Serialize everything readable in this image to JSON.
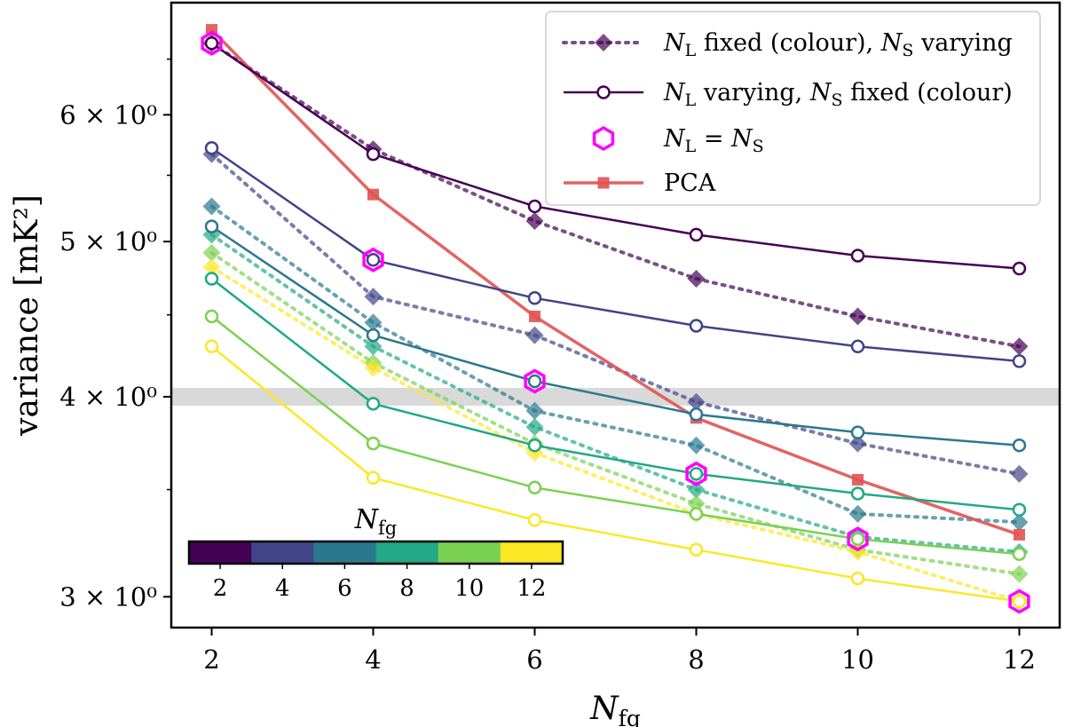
{
  "chart_data": {
    "type": "line",
    "title": "",
    "xlabel": "N_fg",
    "ylabel": "variance [mK^2]",
    "yscale": "log",
    "xlim": [
      1.5,
      12.5
    ],
    "ylim": [
      2.87,
      7.05
    ],
    "x": [
      2,
      4,
      6,
      8,
      10,
      12
    ],
    "xticks": [
      2,
      4,
      6,
      8,
      10,
      12
    ],
    "yticks": [
      {
        "value": 3,
        "label": "3 × 10⁰"
      },
      {
        "value": 4,
        "label": "4 × 10⁰"
      },
      {
        "value": 5,
        "label": "5 × 10⁰"
      },
      {
        "value": 6,
        "label": "6 × 10⁰"
      }
    ],
    "reference_band": {
      "value": 4.0,
      "color": "#d9d9d9"
    },
    "colormap": [
      "#440154",
      "#414487",
      "#2a788e",
      "#22a884",
      "#7ad151",
      "#fde725"
    ],
    "colorbar": {
      "label": "N_fg",
      "ticks": [
        2,
        4,
        6,
        8,
        10,
        12
      ],
      "colors": [
        "#440154",
        "#414487",
        "#2a788e",
        "#22a884",
        "#7ad151",
        "#fde725"
      ]
    },
    "series_solid": [
      {
        "name": "N_S = 2",
        "color": "#440154",
        "values": [
          6.65,
          5.67,
          5.26,
          5.05,
          4.9,
          4.81
        ]
      },
      {
        "name": "N_S = 4",
        "color": "#414487",
        "values": [
          5.72,
          4.87,
          4.61,
          4.43,
          4.3,
          4.21
        ]
      },
      {
        "name": "N_S = 6",
        "color": "#2a788e",
        "values": [
          5.11,
          4.37,
          4.09,
          3.9,
          3.8,
          3.73
        ]
      },
      {
        "name": "N_S = 8",
        "color": "#22a884",
        "values": [
          4.74,
          3.96,
          3.73,
          3.58,
          3.48,
          3.4
        ]
      },
      {
        "name": "N_S = 10",
        "color": "#7ad151",
        "values": [
          4.49,
          3.74,
          3.51,
          3.38,
          3.26,
          3.19
        ]
      },
      {
        "name": "N_S = 12",
        "color": "#fde725",
        "values": [
          4.3,
          3.56,
          3.35,
          3.21,
          3.08,
          2.98
        ]
      }
    ],
    "series_dotted": [
      {
        "name": "N_L = 2",
        "color": "#440154",
        "values": [
          6.65,
          5.71,
          5.15,
          4.74,
          4.49,
          4.3
        ]
      },
      {
        "name": "N_L = 4",
        "color": "#414487",
        "values": [
          5.67,
          4.62,
          4.37,
          3.97,
          3.74,
          3.58
        ]
      },
      {
        "name": "N_L = 6",
        "color": "#2a788e",
        "values": [
          5.26,
          4.45,
          3.92,
          3.73,
          3.38,
          3.34
        ]
      },
      {
        "name": "N_L = 8",
        "color": "#22a884",
        "values": [
          5.05,
          4.3,
          3.83,
          3.5,
          3.27,
          3.2
        ]
      },
      {
        "name": "N_L = 10",
        "color": "#7ad151",
        "values": [
          4.92,
          4.2,
          3.74,
          3.43,
          3.21,
          3.1
        ]
      },
      {
        "name": "N_L = 12",
        "color": "#fde725",
        "values": [
          4.82,
          4.17,
          3.69,
          3.38,
          3.2,
          2.98
        ]
      }
    ],
    "pca": {
      "name": "PCA",
      "color": "#e05252",
      "values": [
        6.78,
        5.35,
        4.49,
        3.88,
        3.55,
        3.28
      ]
    },
    "equal_points": {
      "name": "N_L = N_S",
      "color": "#ff00ff",
      "values": [
        6.65,
        4.87,
        4.09,
        3.58,
        3.26,
        2.98
      ]
    },
    "legend": {
      "position": "top-right",
      "entries": [
        {
          "style": "dotted-diamond",
          "pre": "N",
          "pre_sub": "L",
          "mid": " fixed (colour), ",
          "post": "N",
          "post_sub": "S",
          "tail": " varying"
        },
        {
          "style": "solid-circle",
          "pre": "N",
          "pre_sub": "L",
          "mid": " varying, ",
          "post": "N",
          "post_sub": "S",
          "tail": " fixed (colour)"
        },
        {
          "style": "hexagon",
          "pre": "N",
          "pre_sub": "L",
          "mid": " = ",
          "post": "N",
          "post_sub": "S",
          "tail": ""
        },
        {
          "style": "pca-square",
          "pre": "PCA",
          "pre_sub": "",
          "mid": "",
          "post": "",
          "post_sub": "",
          "tail": ""
        }
      ]
    }
  }
}
